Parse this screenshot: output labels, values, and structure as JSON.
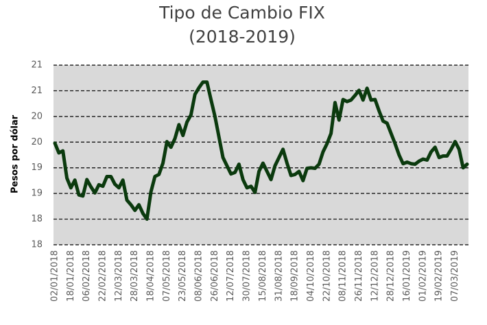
{
  "chart_data": {
    "type": "line",
    "title": "Tipo de Cambio FIX",
    "subtitle": "(2018-2019)",
    "y_label": "Pesos por dólar",
    "categories": [
      "02/01/2018",
      null,
      null,
      null,
      "18/01/2018",
      null,
      null,
      null,
      "06/02/2018",
      null,
      null,
      null,
      "22/02/2018",
      null,
      null,
      null,
      "12/03/2018",
      null,
      null,
      null,
      "28/03/2018",
      null,
      null,
      null,
      "18/04/2018",
      null,
      null,
      null,
      "07/05/2018",
      null,
      null,
      null,
      "23/05/2018",
      null,
      null,
      null,
      "08/06/2018",
      null,
      null,
      null,
      "26/06/2018",
      null,
      null,
      null,
      "12/07/2018",
      null,
      null,
      null,
      "30/07/2018",
      null,
      null,
      null,
      "15/08/2018",
      null,
      null,
      null,
      "31/08/2018",
      null,
      null,
      null,
      "18/09/2018",
      null,
      null,
      null,
      "04/10/2018",
      null,
      null,
      null,
      "22/10/2018",
      null,
      null,
      null,
      "08/11/2018",
      null,
      null,
      null,
      "26/11/2018",
      null,
      null,
      null,
      "12/12/2018",
      null,
      null,
      null,
      "28/12/2018",
      null,
      null,
      null,
      "16/01/2019",
      null,
      null,
      null,
      "01/02/2019",
      null,
      null,
      null,
      "19/02/2019",
      null,
      null,
      null,
      "07/03/2019",
      null,
      null,
      null
    ],
    "series": [
      {
        "name": "FIX",
        "color": "#0b3a0e",
        "values": [
          19.48,
          19.29,
          19.33,
          18.8,
          18.61,
          18.76,
          18.47,
          18.45,
          18.77,
          18.63,
          18.51,
          18.67,
          18.64,
          18.83,
          18.83,
          18.68,
          18.61,
          18.76,
          18.37,
          18.28,
          18.17,
          18.28,
          18.11,
          18.0,
          18.53,
          18.83,
          18.87,
          19.09,
          19.51,
          19.4,
          19.57,
          19.84,
          19.63,
          19.89,
          20.03,
          20.43,
          20.56,
          20.67,
          20.67,
          20.33,
          20.0,
          19.6,
          19.2,
          19.04,
          18.88,
          18.91,
          19.07,
          18.77,
          18.61,
          18.64,
          18.52,
          18.93,
          19.09,
          18.93,
          18.77,
          19.04,
          19.2,
          19.36,
          19.09,
          18.85,
          18.87,
          18.93,
          18.75,
          18.99,
          19.0,
          18.99,
          19.07,
          19.31,
          19.47,
          19.67,
          20.27,
          19.93,
          20.33,
          20.29,
          20.32,
          20.41,
          20.51,
          20.32,
          20.55,
          20.32,
          20.33,
          20.11,
          19.91,
          19.87,
          19.67,
          19.47,
          19.25,
          19.08,
          19.11,
          19.08,
          19.07,
          19.13,
          19.17,
          19.15,
          19.31,
          19.4,
          19.2,
          19.23,
          19.23,
          19.36,
          19.51,
          19.36,
          19.0,
          19.07
        ]
      }
    ],
    "ylim": [
      17.5,
      21
    ],
    "yticks": [
      {
        "value": 17.5,
        "label": "18"
      },
      18,
      {
        "value": 18.5,
        "label": "19"
      },
      19,
      {
        "value": 19.5,
        "label": "20"
      },
      20,
      {
        "value": 20.5,
        "label": "21"
      },
      21
    ],
    "grid": true,
    "plot_background": "#d9d9d9"
  }
}
